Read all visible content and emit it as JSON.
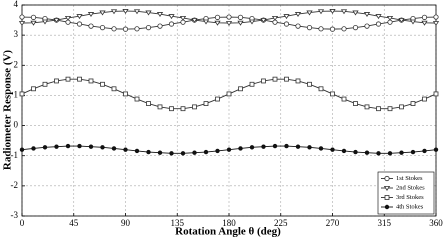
{
  "chart_data": {
    "type": "line",
    "x_label": "Rotation Angle θ (deg)",
    "y_label": "Radiometer Response (V)",
    "x": [
      0,
      10,
      20,
      30,
      40,
      50,
      60,
      70,
      80,
      90,
      100,
      110,
      120,
      130,
      140,
      150,
      160,
      170,
      180,
      190,
      200,
      210,
      220,
      230,
      240,
      250,
      260,
      270,
      280,
      290,
      300,
      310,
      320,
      330,
      340,
      350,
      360
    ],
    "series": [
      {
        "name": "1st Stokes",
        "color": "#333333",
        "marker": "circle-open",
        "values": [
          3.6,
          3.59,
          3.55,
          3.5,
          3.43,
          3.37,
          3.3,
          3.25,
          3.21,
          3.2,
          3.21,
          3.25,
          3.3,
          3.37,
          3.43,
          3.5,
          3.55,
          3.59,
          3.6,
          3.59,
          3.55,
          3.5,
          3.43,
          3.37,
          3.3,
          3.25,
          3.21,
          3.2,
          3.21,
          3.25,
          3.3,
          3.37,
          3.43,
          3.5,
          3.55,
          3.59,
          3.6
        ]
      },
      {
        "name": "2nd Stokes",
        "color": "#333333",
        "marker": "triangle-down-open",
        "values": [
          3.4,
          3.41,
          3.45,
          3.5,
          3.57,
          3.63,
          3.7,
          3.75,
          3.79,
          3.8,
          3.79,
          3.75,
          3.7,
          3.63,
          3.57,
          3.5,
          3.45,
          3.41,
          3.4,
          3.41,
          3.45,
          3.5,
          3.57,
          3.63,
          3.7,
          3.75,
          3.79,
          3.8,
          3.79,
          3.75,
          3.7,
          3.63,
          3.57,
          3.5,
          3.45,
          3.41,
          3.4
        ]
      },
      {
        "name": "3rd Stokes",
        "color": "#333333",
        "marker": "square-open",
        "values": [
          1.05,
          1.22,
          1.37,
          1.48,
          1.54,
          1.54,
          1.48,
          1.37,
          1.22,
          1.05,
          0.88,
          0.73,
          0.62,
          0.56,
          0.56,
          0.62,
          0.73,
          0.88,
          1.05,
          1.22,
          1.37,
          1.48,
          1.54,
          1.54,
          1.48,
          1.37,
          1.22,
          1.05,
          0.88,
          0.73,
          0.62,
          0.56,
          0.56,
          0.62,
          0.73,
          0.88,
          1.05
        ]
      },
      {
        "name": "4th Stokes",
        "color": "#111111",
        "marker": "circle-filled",
        "values": [
          -0.8,
          -0.76,
          -0.72,
          -0.7,
          -0.68,
          -0.68,
          -0.7,
          -0.72,
          -0.76,
          -0.8,
          -0.84,
          -0.88,
          -0.9,
          -0.92,
          -0.92,
          -0.9,
          -0.88,
          -0.84,
          -0.8,
          -0.76,
          -0.72,
          -0.7,
          -0.68,
          -0.68,
          -0.7,
          -0.72,
          -0.76,
          -0.8,
          -0.84,
          -0.88,
          -0.9,
          -0.92,
          -0.92,
          -0.9,
          -0.88,
          -0.84,
          -0.8
        ]
      }
    ],
    "xlim": [
      0,
      360
    ],
    "xticks": [
      0,
      45,
      90,
      135,
      180,
      225,
      270,
      315,
      360
    ],
    "ylim": [
      -3,
      4
    ],
    "yticks": [
      -3,
      -2,
      -1,
      0,
      1,
      2,
      3,
      4
    ],
    "grid": true,
    "legend": "lower right"
  }
}
